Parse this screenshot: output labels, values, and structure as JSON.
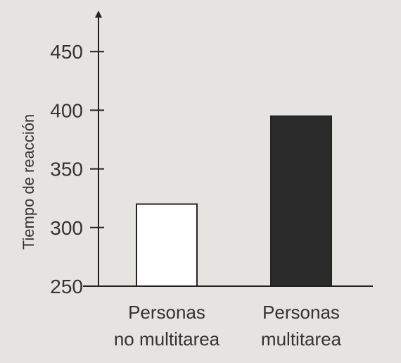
{
  "chart_data": {
    "type": "bar",
    "ylabel": "Tiempo de reacción",
    "categories": [
      "Personas\nno multitarea",
      "Personas\nmultitarea"
    ],
    "values": [
      320,
      395
    ],
    "colors": [
      "#ffffff",
      "#2b2b2b"
    ],
    "ylim": [
      250,
      485
    ],
    "yticks": [
      250,
      300,
      350,
      400,
      450
    ],
    "grid": false
  }
}
